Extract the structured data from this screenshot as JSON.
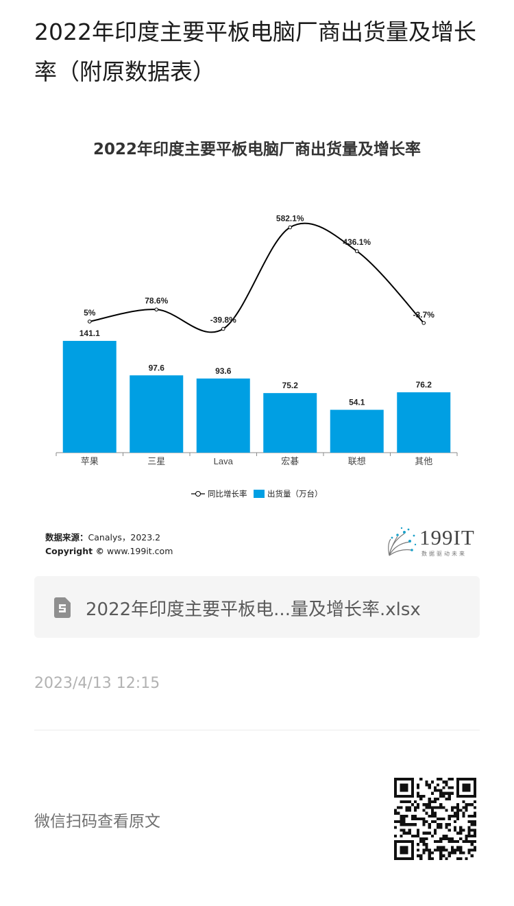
{
  "page": {
    "title": "2022年印度主要平板电脑厂商出货量及增长率（附原数据表）"
  },
  "chart_data": {
    "type": "bar",
    "title": "2022年印度主要平板电脑厂商出货量及增长率",
    "categories": [
      "苹果",
      "三星",
      "Lava",
      "宏碁",
      "联想",
      "其他"
    ],
    "series": [
      {
        "name": "出货量（万台）",
        "type": "bar",
        "values": [
          141.1,
          97.6,
          93.6,
          75.2,
          54.1,
          76.2
        ],
        "labels": [
          "141.1",
          "97.6",
          "93.6",
          "75.2",
          "54.1",
          "76.2"
        ]
      },
      {
        "name": "同比增长率",
        "type": "line",
        "values": [
          5,
          78.6,
          -39.8,
          582.1,
          436.1,
          -3.7
        ],
        "labels": [
          "5%",
          "78.6%",
          "-39.8%",
          "582.1%",
          "436.1%",
          "-3.7%"
        ]
      }
    ],
    "legend": [
      "同比增长率",
      "出货量（万台）"
    ],
    "legend_position": "bottom",
    "grid": false,
    "colors": {
      "bar": "#009fe3",
      "line": "#000000"
    }
  },
  "footer": {
    "source_label": "数据来源：",
    "source_value": "Canalys，2023.2",
    "copyright_label": "Copyright ©",
    "copyright_value": "www.199it.com",
    "logo_text": "199IT",
    "logo_sub": "数据驱动未来"
  },
  "attachment": {
    "icon": "spreadsheet-file-icon",
    "filename": "2022年印度主要平板电...量及增长率.xlsx"
  },
  "timestamp": "2023/4/13 12:15",
  "qr": {
    "hint": "微信扫码查看原文",
    "icon": "qr-code-icon"
  }
}
